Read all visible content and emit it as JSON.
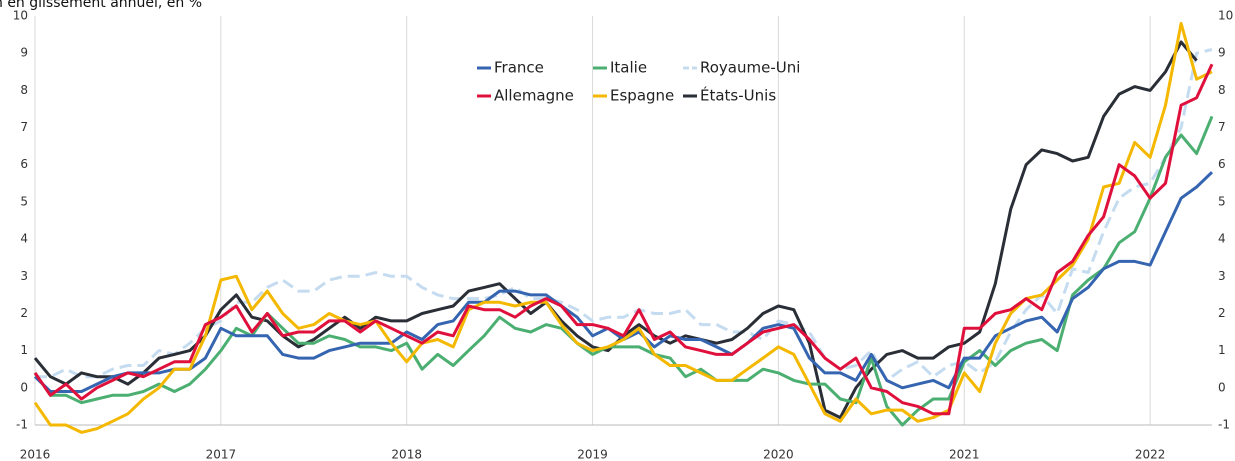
{
  "chart_data": {
    "type": "line",
    "title": "n en glissement annuel, en %",
    "x": [
      2016,
      2016.083,
      2016.167,
      2016.25,
      2016.333,
      2016.417,
      2016.5,
      2016.583,
      2016.667,
      2016.75,
      2016.833,
      2016.917,
      2017,
      2017.083,
      2017.167,
      2017.25,
      2017.333,
      2017.417,
      2017.5,
      2017.583,
      2017.667,
      2017.75,
      2017.833,
      2017.917,
      2018,
      2018.083,
      2018.167,
      2018.25,
      2018.333,
      2018.417,
      2018.5,
      2018.583,
      2018.667,
      2018.75,
      2018.833,
      2018.917,
      2019,
      2019.083,
      2019.167,
      2019.25,
      2019.333,
      2019.417,
      2019.5,
      2019.583,
      2019.667,
      2019.75,
      2019.833,
      2019.917,
      2020,
      2020.083,
      2020.167,
      2020.25,
      2020.333,
      2020.417,
      2020.5,
      2020.583,
      2020.667,
      2020.75,
      2020.833,
      2020.917,
      2021,
      2021.083,
      2021.167,
      2021.25,
      2021.333,
      2021.417,
      2021.5,
      2021.583,
      2021.667,
      2021.75,
      2021.833,
      2021.917,
      2022,
      2022.083,
      2022.167,
      2022.25,
      2022.333
    ],
    "series": [
      {
        "name": "France",
        "color": "#3565b0",
        "values": [
          0.3,
          -0.1,
          -0.1,
          -0.1,
          0.1,
          0.3,
          0.4,
          0.4,
          0.4,
          0.5,
          0.5,
          0.8,
          1.6,
          1.4,
          1.4,
          1.4,
          0.9,
          0.8,
          0.8,
          1.0,
          1.1,
          1.2,
          1.2,
          1.2,
          1.5,
          1.3,
          1.7,
          1.8,
          2.3,
          2.3,
          2.6,
          2.6,
          2.5,
          2.5,
          2.2,
          1.9,
          1.4,
          1.6,
          1.3,
          1.5,
          1.1,
          1.4,
          1.3,
          1.3,
          1.1,
          0.9,
          1.2,
          1.6,
          1.7,
          1.6,
          0.8,
          0.4,
          0.4,
          0.2,
          0.9,
          0.2,
          0.0,
          0.1,
          0.2,
          0.0,
          0.8,
          0.8,
          1.4,
          1.6,
          1.8,
          1.9,
          1.5,
          2.4,
          2.7,
          3.2,
          3.4,
          3.4,
          3.3,
          4.2,
          5.1,
          5.4,
          5.8
        ]
      },
      {
        "name": "Italie",
        "color": "#4caf72",
        "values": [
          0.4,
          -0.2,
          -0.2,
          -0.4,
          -0.3,
          -0.2,
          -0.2,
          -0.1,
          0.1,
          -0.1,
          0.1,
          0.5,
          1.0,
          1.6,
          1.4,
          2.0,
          1.6,
          1.2,
          1.2,
          1.4,
          1.3,
          1.1,
          1.1,
          1.0,
          1.2,
          0.5,
          0.9,
          0.6,
          1.0,
          1.4,
          1.9,
          1.6,
          1.5,
          1.7,
          1.6,
          1.2,
          0.9,
          1.1,
          1.1,
          1.1,
          0.9,
          0.8,
          0.3,
          0.5,
          0.2,
          0.2,
          0.2,
          0.5,
          0.4,
          0.2,
          0.1,
          0.1,
          -0.3,
          -0.4,
          0.8,
          -0.5,
          -1.0,
          -0.6,
          -0.3,
          -0.3,
          0.7,
          1.0,
          0.6,
          1.0,
          1.2,
          1.3,
          1.0,
          2.5,
          2.9,
          3.2,
          3.9,
          4.2,
          5.1,
          6.2,
          6.8,
          6.3,
          7.3
        ]
      },
      {
        "name": "Royaume-Uni",
        "color": "#c5dcf0",
        "dashed": true,
        "values": [
          0.3,
          0.3,
          0.5,
          0.3,
          0.3,
          0.5,
          0.6,
          0.6,
          1.0,
          0.9,
          1.2,
          1.6,
          1.8,
          2.3,
          2.3,
          2.7,
          2.9,
          2.6,
          2.6,
          2.9,
          3.0,
          3.0,
          3.1,
          3.0,
          3.0,
          2.7,
          2.5,
          2.4,
          2.4,
          2.4,
          2.5,
          2.7,
          2.4,
          2.4,
          2.3,
          2.1,
          1.8,
          1.9,
          1.9,
          2.1,
          2.0,
          2.0,
          2.1,
          1.7,
          1.7,
          1.5,
          1.5,
          1.3,
          1.8,
          1.7,
          1.5,
          0.8,
          0.5,
          0.6,
          1.0,
          0.2,
          0.5,
          0.7,
          0.3,
          0.6,
          0.7,
          0.4,
          0.7,
          1.5,
          2.1,
          2.5,
          2.0,
          3.2,
          3.1,
          4.2,
          5.1,
          5.4,
          5.5,
          6.2,
          7.0,
          9.0,
          9.1
        ]
      },
      {
        "name": "Allemagne",
        "color": "#e0103c",
        "values": [
          0.4,
          -0.2,
          0.1,
          -0.3,
          0.0,
          0.2,
          0.4,
          0.3,
          0.5,
          0.7,
          0.7,
          1.7,
          1.9,
          2.2,
          1.5,
          2.0,
          1.4,
          1.5,
          1.5,
          1.8,
          1.8,
          1.5,
          1.8,
          1.6,
          1.4,
          1.2,
          1.5,
          1.4,
          2.2,
          2.1,
          2.1,
          1.9,
          2.2,
          2.4,
          2.2,
          1.7,
          1.7,
          1.6,
          1.4,
          2.1,
          1.3,
          1.5,
          1.1,
          1.0,
          0.9,
          0.9,
          1.2,
          1.5,
          1.6,
          1.7,
          1.3,
          0.8,
          0.5,
          0.8,
          0.0,
          -0.1,
          -0.4,
          -0.5,
          -0.7,
          -0.7,
          1.6,
          1.6,
          2.0,
          2.1,
          2.4,
          2.1,
          3.1,
          3.4,
          4.1,
          4.6,
          6.0,
          5.7,
          5.1,
          5.5,
          7.6,
          7.8,
          8.7
        ]
      },
      {
        "name": "Espagne",
        "color": "#f5b800",
        "values": [
          -0.4,
          -1.0,
          -1.0,
          -1.2,
          -1.1,
          -0.9,
          -0.7,
          -0.3,
          0.0,
          0.5,
          0.5,
          1.4,
          2.9,
          3.0,
          2.1,
          2.6,
          2.0,
          1.6,
          1.7,
          2.0,
          1.8,
          1.7,
          1.8,
          1.2,
          0.7,
          1.2,
          1.3,
          1.1,
          2.1,
          2.3,
          2.3,
          2.2,
          2.3,
          2.3,
          1.7,
          1.2,
          1.0,
          1.1,
          1.3,
          1.6,
          0.9,
          0.6,
          0.6,
          0.4,
          0.2,
          0.2,
          0.5,
          0.8,
          1.1,
          0.9,
          0.1,
          -0.7,
          -0.9,
          -0.3,
          -0.7,
          -0.6,
          -0.6,
          -0.9,
          -0.8,
          -0.6,
          0.4,
          -0.1,
          1.2,
          2.0,
          2.4,
          2.5,
          2.9,
          3.3,
          4.0,
          5.4,
          5.5,
          6.6,
          6.2,
          7.6,
          9.8,
          8.3,
          8.5
        ]
      },
      {
        "name": "États-Unis",
        "color": "#2a2e36",
        "values": [
          0.8,
          0.3,
          0.1,
          0.4,
          0.3,
          0.3,
          0.1,
          0.4,
          0.8,
          0.9,
          1.0,
          1.4,
          2.1,
          2.5,
          1.9,
          1.8,
          1.4,
          1.1,
          1.3,
          1.6,
          1.9,
          1.6,
          1.9,
          1.8,
          1.8,
          2.0,
          2.1,
          2.2,
          2.6,
          2.7,
          2.8,
          2.4,
          2.0,
          2.3,
          1.8,
          1.4,
          1.1,
          1.0,
          1.4,
          1.7,
          1.4,
          1.2,
          1.4,
          1.3,
          1.2,
          1.3,
          1.6,
          2.0,
          2.2,
          2.1,
          1.2,
          -0.6,
          -0.8,
          0.0,
          0.5,
          0.9,
          1.0,
          0.8,
          0.8,
          1.1,
          1.2,
          1.5,
          2.8,
          4.8,
          6.0,
          6.4,
          6.3,
          6.1,
          6.2,
          7.3,
          7.9,
          8.1,
          8.0,
          8.5,
          9.3,
          8.8,
          null
        ]
      }
    ],
    "xlim": [
      2016,
      2022.333
    ],
    "xticks": [
      2016,
      2017,
      2018,
      2019,
      2020,
      2021,
      2022
    ],
    "ylim": [
      -1,
      10
    ],
    "yticks": [
      -1,
      0,
      1,
      2,
      3,
      4,
      5,
      6,
      7,
      8,
      9,
      10
    ],
    "y2lim": [
      -1,
      10
    ],
    "y2ticks": [
      -1,
      0,
      1,
      2,
      3,
      4,
      5,
      6,
      7,
      8,
      9,
      10
    ],
    "grid": "x"
  }
}
